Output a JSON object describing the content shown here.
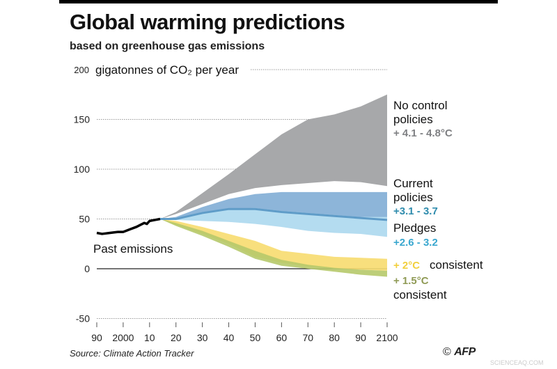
{
  "chart_data": {
    "type": "area",
    "title": "Global warming predictions",
    "subtitle": "based on greenhouse gas emissions",
    "ylabel": "gigatonnes of CO₂ per year",
    "xlim": [
      1990,
      2100
    ],
    "ylim": [
      -50,
      200
    ],
    "yticks": [
      -50,
      0,
      50,
      100,
      150,
      200
    ],
    "xticks": [
      1990,
      2000,
      2010,
      2020,
      2030,
      2040,
      2050,
      2060,
      2070,
      2080,
      2090,
      2100
    ],
    "xtick_labels": [
      "90",
      "2000",
      "10",
      "20",
      "30",
      "40",
      "50",
      "60",
      "70",
      "80",
      "90",
      "2100"
    ],
    "grid": "dotted horizontal",
    "past": {
      "label": "Past emissions",
      "color": "#000000",
      "x": [
        1990,
        1992,
        1995,
        1998,
        2000,
        2003,
        2005,
        2008,
        2009,
        2010,
        2012,
        2014
      ],
      "y": [
        36,
        35,
        36,
        37,
        37,
        40,
        42,
        46,
        45,
        48,
        49,
        50
      ]
    },
    "bands": [
      {
        "name": "No control policies",
        "range": "+ 4.1 - 4.8°C",
        "color": "#a7a8aa",
        "label_color": "#7f8083",
        "x": [
          2014,
          2020,
          2030,
          2040,
          2050,
          2060,
          2070,
          2080,
          2090,
          2100
        ],
        "upper": [
          50,
          57,
          76,
          95,
          115,
          135,
          150,
          155,
          163,
          175
        ],
        "lower": [
          50,
          55,
          65,
          75,
          81,
          84,
          86,
          88,
          87,
          83
        ]
      },
      {
        "name": "Current policies",
        "range": "+3.1 - 3.7",
        "color": "#8db5d9",
        "label_color": "#2f8cad",
        "x": [
          2014,
          2020,
          2030,
          2040,
          2050,
          2060,
          2070,
          2080,
          2090,
          2100
        ],
        "upper": [
          50,
          52,
          62,
          70,
          75,
          77,
          77,
          77,
          77,
          77
        ],
        "lower": [
          50,
          50,
          56,
          60,
          60,
          57,
          55,
          53,
          51,
          49
        ]
      },
      {
        "name": "Pledges",
        "range": "+2.6 - 3.2",
        "color": "#b4dcf0",
        "label_color": "#3aa7cf",
        "x": [
          2014,
          2020,
          2030,
          2040,
          2050,
          2060,
          2070,
          2080,
          2090,
          2100
        ],
        "upper": [
          50,
          51,
          57,
          60,
          61,
          58,
          56,
          54,
          52,
          52
        ],
        "lower": [
          50,
          49,
          48,
          47,
          45,
          42,
          38,
          36,
          35,
          32
        ]
      },
      {
        "name": "consistent",
        "range": "+ 2°C",
        "color": "#f7dc6f",
        "label_color": "#f2cf3c",
        "x": [
          2014,
          2020,
          2030,
          2040,
          2050,
          2060,
          2070,
          2080,
          2090,
          2100
        ],
        "upper": [
          50,
          48,
          42,
          35,
          28,
          18,
          15,
          12,
          11,
          10
        ],
        "lower": [
          50,
          44,
          35,
          25,
          12,
          6,
          2,
          0,
          -1,
          -2
        ]
      },
      {
        "name": "consistent",
        "range": "+ 1.5°C",
        "color": "#b6c96a",
        "label_color": "#8f9a55",
        "x": [
          2014,
          2020,
          2030,
          2040,
          2050,
          2060,
          2070,
          2080,
          2090,
          2100
        ],
        "upper": [
          50,
          46,
          38,
          28,
          18,
          9,
          4,
          1,
          -1,
          -2
        ],
        "lower": [
          50,
          43,
          33,
          22,
          10,
          3,
          0,
          -3,
          -6,
          -8
        ]
      }
    ]
  },
  "source": "Source: Climate Action Tracker",
  "credit": {
    "symbol": "©",
    "brand": "AFP"
  },
  "watermark": "SCIENCEAQ.COM"
}
